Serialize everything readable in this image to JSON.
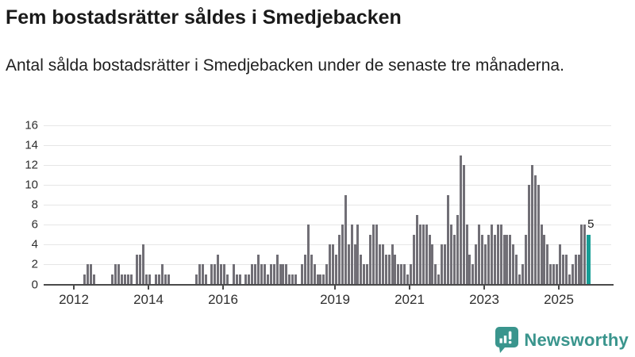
{
  "title": "Fem bostadsrätter såldes i Smedjebacken",
  "subtitle": "Antal sålda bostadsrätter i Smedjebacken under de senaste tre månaderna.",
  "annotation": {
    "last_value_label": "5"
  },
  "branding": {
    "name": "Newsworthy",
    "icon": "newsworthy-speech-bubble-chart-icon"
  },
  "colors": {
    "bar": "#716f76",
    "highlight": "#169d95",
    "grid": "#e6e6e6",
    "axis": "#4a4a4a",
    "title_text": "#1a1a1a",
    "tick_text": "#2e2e2e",
    "logo": "#3a958d"
  },
  "chart_data": {
    "type": "bar",
    "title": "Fem bostadsrätter såldes i Smedjebacken",
    "xlabel": "",
    "ylabel": "",
    "start_month": "2012-01",
    "end_month": "2025-10",
    "frequency": "monthly",
    "ylim": [
      0,
      16
    ],
    "yticks": [
      0,
      2,
      4,
      6,
      8,
      10,
      12,
      14,
      16
    ],
    "grid": true,
    "legend": false,
    "xticks": [
      {
        "label": "2012",
        "year": 2012
      },
      {
        "label": "2014",
        "year": 2014
      },
      {
        "label": "2016",
        "year": 2016
      },
      {
        "label": "2019",
        "year": 2019
      },
      {
        "label": "2021",
        "year": 2021
      },
      {
        "label": "2023",
        "year": 2023
      },
      {
        "label": "2025",
        "year": 2025
      }
    ],
    "highlight_last": true,
    "values": [
      0,
      0,
      0,
      1,
      2,
      2,
      1,
      0,
      0,
      0,
      0,
      0,
      1,
      2,
      2,
      1,
      1,
      1,
      1,
      0,
      3,
      3,
      4,
      1,
      1,
      0,
      1,
      1,
      2,
      1,
      1,
      0,
      0,
      0,
      0,
      0,
      0,
      0,
      0,
      1,
      2,
      2,
      1,
      0,
      2,
      2,
      3,
      2,
      2,
      1,
      0,
      2,
      1,
      1,
      0,
      1,
      1,
      2,
      2,
      3,
      2,
      2,
      1,
      2,
      2,
      3,
      2,
      2,
      2,
      1,
      1,
      1,
      0,
      2,
      3,
      6,
      3,
      2,
      1,
      1,
      1,
      2,
      4,
      4,
      3,
      5,
      6,
      9,
      4,
      6,
      4,
      6,
      3,
      2,
      2,
      5,
      6,
      6,
      4,
      4,
      3,
      3,
      4,
      3,
      2,
      2,
      2,
      1,
      2,
      5,
      7,
      6,
      6,
      6,
      5,
      4,
      2,
      1,
      4,
      4,
      9,
      6,
      5,
      7,
      13,
      12,
      6,
      3,
      2,
      4,
      6,
      5,
      4,
      5,
      6,
      5,
      6,
      6,
      5,
      5,
      5,
      4,
      3,
      1,
      2,
      5,
      10,
      12,
      11,
      10,
      6,
      5,
      4,
      2,
      2,
      2,
      4,
      3,
      3,
      1,
      2,
      3,
      3,
      6,
      6,
      5
    ]
  }
}
